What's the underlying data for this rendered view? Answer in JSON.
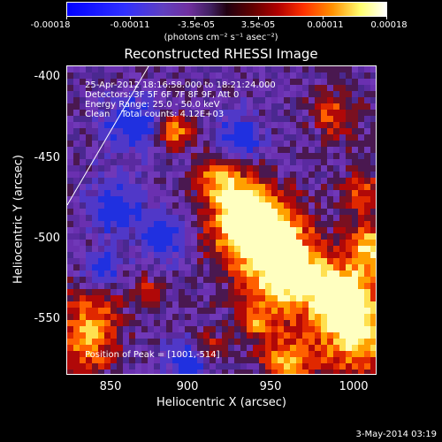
{
  "colorbar": {
    "ticks": [
      "-0.00018",
      "-0.00011",
      "-3.5e-05",
      "3.5e-05",
      "0.00011",
      "0.00018"
    ],
    "unit": "(photons cm⁻² s⁻¹ asec⁻²)",
    "colors": [
      "#0000ff",
      "#ff0000",
      "#ffff80",
      "#ffffff"
    ]
  },
  "title": "Reconstructed RHESSI Image",
  "annotations": {
    "line1": "25-Apr-2012 18:16:58.000 to 18:21:24.000",
    "line2": "Detectors: 3F 5F 6F 7F 8F 9F, Att 0",
    "line3": "Energy Range: 25.0 - 50.0 keV",
    "line4": "Clean    Total counts: 4.12E+03",
    "peak": "Position of Peak = [1001,-514]"
  },
  "axes": {
    "xlabel": "Heliocentric X (arcsec)",
    "ylabel": "Heliocentric Y (arcsec)",
    "xticks": [
      "850",
      "900",
      "950",
      "1000"
    ],
    "yticks": [
      "-400",
      "-450",
      "-500",
      "-550"
    ]
  },
  "timestamp": "3-May-2014 03:19"
}
